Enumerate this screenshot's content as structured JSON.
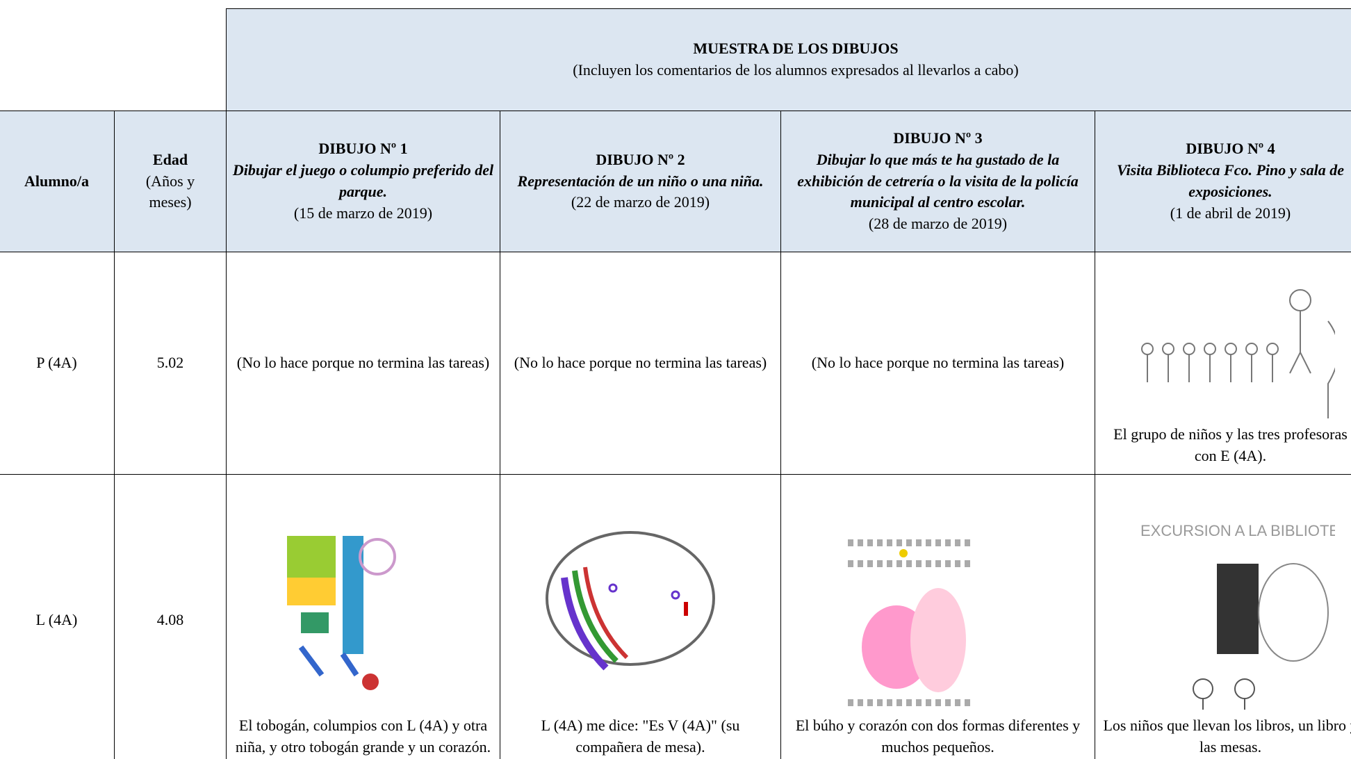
{
  "header": {
    "title": "MUESTRA DE LOS DIBUJOS",
    "subtitle": "(Incluyen los comentarios de los alumnos expresados al llevarlos a cabo)"
  },
  "columns": [
    {
      "label": "Alumno/a"
    },
    {
      "label": "Edad",
      "sub": "(Años y meses)"
    },
    {
      "title": "DIBUJO Nº 1",
      "task": "Dibujar el juego o columpio preferido del parque.",
      "date": "(15 de marzo de 2019)"
    },
    {
      "title": "DIBUJO Nº 2",
      "task": "Representación de un niño o una niña.",
      "date": "(22 de marzo de 2019)"
    },
    {
      "title": "DIBUJO Nº 3",
      "task": "Dibujar lo que más te ha gustado de la exhibición de cetrería o la visita de la policía municipal al centro escolar.",
      "date": "(28 de marzo de 2019)"
    },
    {
      "title": "DIBUJO Nº 4",
      "task": "Visita Biblioteca Fco. Pino y sala de exposiciones.",
      "date": "(1 de abril de 2019)"
    }
  ],
  "rows": [
    {
      "student": "P (4A)",
      "age": "5.02",
      "cells": [
        "(No lo hace porque no termina las tareas)",
        "(No lo hace porque no termina las tareas)",
        "(No lo hace porque no termina las tareas)",
        "El grupo de niños y las tres profesoras con E (4A)."
      ]
    },
    {
      "student": "L (4A)",
      "age": "4.08",
      "cells": [
        "El tobogán, columpios con L (4A) y otra niña, y otro tobogán grande y un corazón.",
        "L (4A) me dice: \"Es V (4A)\" (su compañera de mesa).",
        "El búho y corazón con dos formas diferentes y muchos pequeños.",
        "Los niños que llevan los libros, un libro y las mesas."
      ]
    }
  ]
}
